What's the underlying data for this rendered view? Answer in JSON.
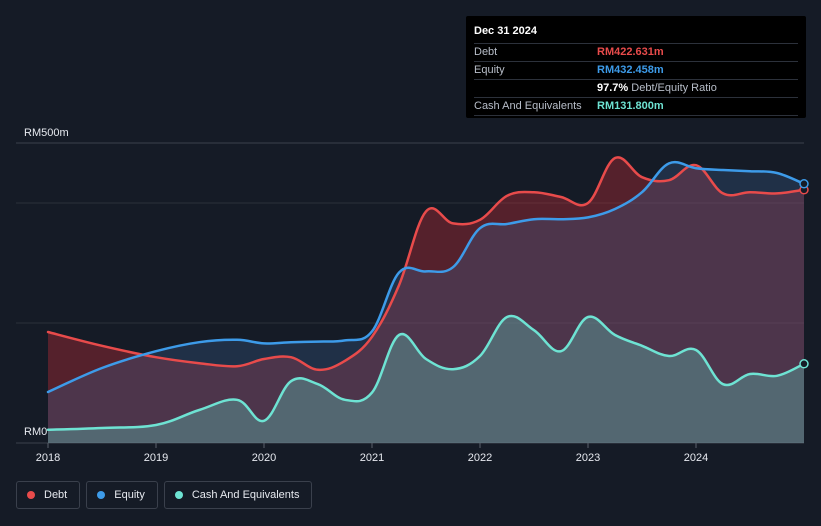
{
  "tooltip": {
    "date": "Dec 31 2024",
    "rows": [
      {
        "label": "Debt",
        "value": "RM422.631m",
        "color": "#e84b4b"
      },
      {
        "label": "Equity",
        "value": "RM432.458m",
        "color": "#3d9be9"
      },
      {
        "ratio_value": "97.7%",
        "ratio_text": "Debt/Equity Ratio"
      },
      {
        "label": "Cash And Equivalents",
        "value": "RM131.800m",
        "color": "#6ee3d3"
      }
    ]
  },
  "legend": [
    {
      "label": "Debt",
      "color": "#e84b4b"
    },
    {
      "label": "Equity",
      "color": "#3d9be9"
    },
    {
      "label": "Cash And Equivalents",
      "color": "#6ee3d3"
    }
  ],
  "chart_data": {
    "type": "area",
    "y_top_label": "RM500m",
    "y_bottom_label": "RM0",
    "ylim": [
      0,
      500
    ],
    "xlim": [
      2018.0,
      2025.0
    ],
    "x_ticks": [
      "2018",
      "2019",
      "2020",
      "2021",
      "2022",
      "2023",
      "2024"
    ],
    "x_tick_values": [
      2018,
      2019,
      2020,
      2021,
      2022,
      2023,
      2024
    ],
    "series": [
      {
        "name": "Debt",
        "color": "#e84b4b",
        "x": [
          2018.0,
          2018.5,
          2019.0,
          2019.4,
          2019.75,
          2020.0,
          2020.25,
          2020.5,
          2020.75,
          2021.0,
          2021.25,
          2021.5,
          2021.75,
          2022.0,
          2022.25,
          2022.5,
          2022.75,
          2023.0,
          2023.25,
          2023.5,
          2023.75,
          2024.0,
          2024.25,
          2024.5,
          2024.75,
          2025.0
        ],
        "y": [
          185,
          162,
          143,
          133,
          128,
          140,
          143,
          122,
          137,
          177,
          263,
          386,
          366,
          372,
          412,
          418,
          410,
          400,
          475,
          443,
          438,
          463,
          416,
          418,
          416,
          422
        ]
      },
      {
        "name": "Equity",
        "color": "#3d9be9",
        "x": [
          2018.0,
          2018.5,
          2019.0,
          2019.4,
          2019.75,
          2020.0,
          2020.25,
          2020.5,
          2020.75,
          2021.0,
          2021.25,
          2021.5,
          2021.75,
          2022.0,
          2022.25,
          2022.5,
          2022.75,
          2023.0,
          2023.25,
          2023.5,
          2023.75,
          2024.0,
          2024.25,
          2024.5,
          2024.75,
          2025.0
        ],
        "y": [
          85,
          125,
          153,
          168,
          172,
          166,
          168,
          169,
          171,
          186,
          284,
          286,
          293,
          358,
          365,
          373,
          373,
          376,
          390,
          418,
          466,
          458,
          455,
          453,
          450,
          432
        ]
      },
      {
        "name": "Cash And Equivalents",
        "color": "#6ee3d3",
        "x": [
          2018.0,
          2018.5,
          2019.0,
          2019.4,
          2019.75,
          2020.0,
          2020.25,
          2020.5,
          2020.75,
          2021.0,
          2021.25,
          2021.5,
          2021.75,
          2022.0,
          2022.25,
          2022.5,
          2022.75,
          2023.0,
          2023.25,
          2023.5,
          2023.75,
          2024.0,
          2024.25,
          2024.5,
          2024.75,
          2025.0
        ],
        "y": [
          22,
          25,
          30,
          55,
          72,
          37,
          103,
          98,
          72,
          84,
          180,
          140,
          123,
          145,
          210,
          188,
          153,
          210,
          180,
          162,
          145,
          155,
          98,
          115,
          112,
          132
        ]
      }
    ]
  }
}
